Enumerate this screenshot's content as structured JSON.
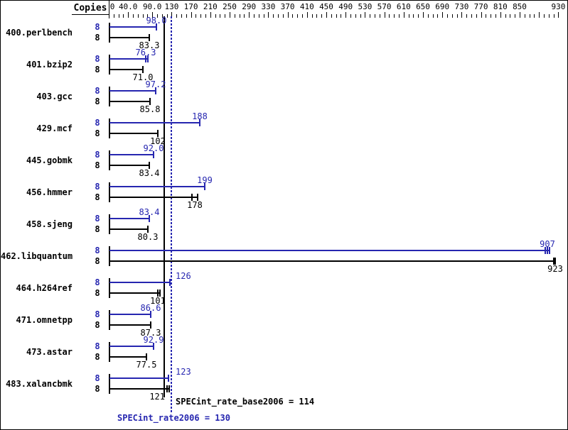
{
  "copies_header": "Copies",
  "colors": {
    "peak_blue": "#2626b0",
    "base_black": "#000000"
  },
  "axis": {
    "labels": [
      {
        "t": "0",
        "v": 0
      },
      {
        "t": "40.0",
        "v": 40
      },
      {
        "t": "90.0",
        "v": 90
      },
      {
        "t": "130",
        "v": 130
      },
      {
        "t": "170",
        "v": 170
      },
      {
        "t": "210",
        "v": 210
      },
      {
        "t": "250",
        "v": 250
      },
      {
        "t": "290",
        "v": 290
      },
      {
        "t": "330",
        "v": 330
      },
      {
        "t": "370",
        "v": 370
      },
      {
        "t": "410",
        "v": 410
      },
      {
        "t": "450",
        "v": 450
      },
      {
        "t": "490",
        "v": 490
      },
      {
        "t": "530",
        "v": 530
      },
      {
        "t": "570",
        "v": 570
      },
      {
        "t": "610",
        "v": 610
      },
      {
        "t": "650",
        "v": 650
      },
      {
        "t": "690",
        "v": 690
      },
      {
        "t": "730",
        "v": 730
      },
      {
        "t": "770",
        "v": 770
      },
      {
        "t": "810",
        "v": 810
      },
      {
        "t": "850",
        "v": 850
      },
      {
        "t": "930",
        "v": 930
      }
    ],
    "minor_tick_step": 10,
    "max": 930,
    "major_tick_values": [
      40,
      90,
      130,
      170,
      210,
      250,
      290,
      330,
      370,
      410,
      450,
      490,
      530,
      570,
      610,
      650,
      690,
      730,
      770,
      810,
      850,
      890,
      930
    ]
  },
  "benchmarks": [
    {
      "name": "400.perlbench",
      "copies": "8",
      "peak": {
        "label": "98.0",
        "value": 98.0
      },
      "base": {
        "label": "83.3",
        "value": 83.3
      }
    },
    {
      "name": "401.bzip2",
      "copies": "8",
      "peak": {
        "label": "76.3",
        "value": 76.3,
        "run_ticks": [
          76.3,
          81
        ]
      },
      "base": {
        "label": "71.0",
        "value": 71.0
      }
    },
    {
      "name": "403.gcc",
      "copies": "8",
      "peak": {
        "label": "97.2",
        "value": 97.2
      },
      "base": {
        "label": "85.8",
        "value": 85.8
      }
    },
    {
      "name": "429.mcf",
      "copies": "8",
      "peak": {
        "label": "188",
        "value": 188
      },
      "base": {
        "label": "102",
        "value": 102
      }
    },
    {
      "name": "445.gobmk",
      "copies": "8",
      "peak": {
        "label": "92.0",
        "value": 92.0
      },
      "base": {
        "label": "83.4",
        "value": 83.4
      }
    },
    {
      "name": "456.hmmer",
      "copies": "8",
      "peak": {
        "label": "199",
        "value": 199
      },
      "base": {
        "label": "178",
        "value": 178,
        "run_ticks": [
          172,
          184
        ]
      }
    },
    {
      "name": "458.sjeng",
      "copies": "8",
      "peak": {
        "label": "83.4",
        "value": 83.4
      },
      "base": {
        "label": "80.3",
        "value": 80.3
      }
    },
    {
      "name": "462.libquantum",
      "copies": "8",
      "peak": {
        "label": "907",
        "value": 907,
        "run_ticks": [
          903,
          907,
          912
        ]
      },
      "base": {
        "label": "923",
        "value": 923,
        "run_ticks": [
          920,
          923
        ]
      }
    },
    {
      "name": "464.h264ref",
      "copies": "8",
      "peak": {
        "label": "126",
        "value": 126
      },
      "base": {
        "label": "101",
        "value": 101,
        "run_ticks": [
          101,
          106
        ]
      }
    },
    {
      "name": "471.omnetpp",
      "copies": "8",
      "peak": {
        "label": "86.6",
        "value": 86.6
      },
      "base": {
        "label": "87.3",
        "value": 87.3
      }
    },
    {
      "name": "473.astar",
      "copies": "8",
      "peak": {
        "label": "92.9",
        "value": 92.9
      },
      "base": {
        "label": "77.5",
        "value": 77.5
      }
    },
    {
      "name": "483.xalancbmk",
      "copies": "8",
      "peak": {
        "label": "123",
        "value": 123
      },
      "base": {
        "label": "121",
        "value": 121,
        "run_ticks": [
          121,
          125
        ]
      }
    }
  ],
  "reference_lines": {
    "base": {
      "text": "SPECint_rate_base2006 = 114",
      "value": 114,
      "style": "solid",
      "color": "#000000"
    },
    "peak": {
      "text": "SPECint_rate2006 = 130",
      "value": 130,
      "style": "dotted",
      "color": "#2626b0"
    }
  },
  "chart_data": {
    "type": "bar",
    "orientation": "horizontal",
    "title": "",
    "categories": [
      "400.perlbench",
      "401.bzip2",
      "403.gcc",
      "429.mcf",
      "445.gobmk",
      "456.hmmer",
      "458.sjeng",
      "462.libquantum",
      "464.h264ref",
      "471.omnetpp",
      "473.astar",
      "483.xalancbmk"
    ],
    "series": [
      {
        "name": "SPECint_rate2006 (peak)",
        "color": "#2626b0",
        "copies": [
          8,
          8,
          8,
          8,
          8,
          8,
          8,
          8,
          8,
          8,
          8,
          8
        ],
        "values": [
          98.0,
          76.3,
          97.2,
          188,
          92.0,
          199,
          83.4,
          907,
          126,
          86.6,
          92.9,
          123
        ]
      },
      {
        "name": "SPECint_rate_base2006 (base)",
        "color": "#000000",
        "copies": [
          8,
          8,
          8,
          8,
          8,
          8,
          8,
          8,
          8,
          8,
          8,
          8
        ],
        "values": [
          83.3,
          71.0,
          85.8,
          102,
          83.4,
          178,
          80.3,
          923,
          101,
          87.3,
          77.5,
          121
        ]
      }
    ],
    "xlabel": "",
    "ylabel": "Copies",
    "xlim": [
      0,
      930
    ],
    "x_tick_labels": [
      "0",
      "40.0",
      "90.0",
      "130",
      "170",
      "210",
      "250",
      "290",
      "330",
      "370",
      "410",
      "450",
      "490",
      "530",
      "570",
      "610",
      "650",
      "690",
      "730",
      "770",
      "810",
      "850",
      "930"
    ],
    "grid": false,
    "legend_position": "none",
    "annotations": [
      {
        "text": "SPECint_rate_base2006 = 114",
        "x": 114
      },
      {
        "text": "SPECint_rate2006 = 130",
        "x": 130
      }
    ]
  }
}
